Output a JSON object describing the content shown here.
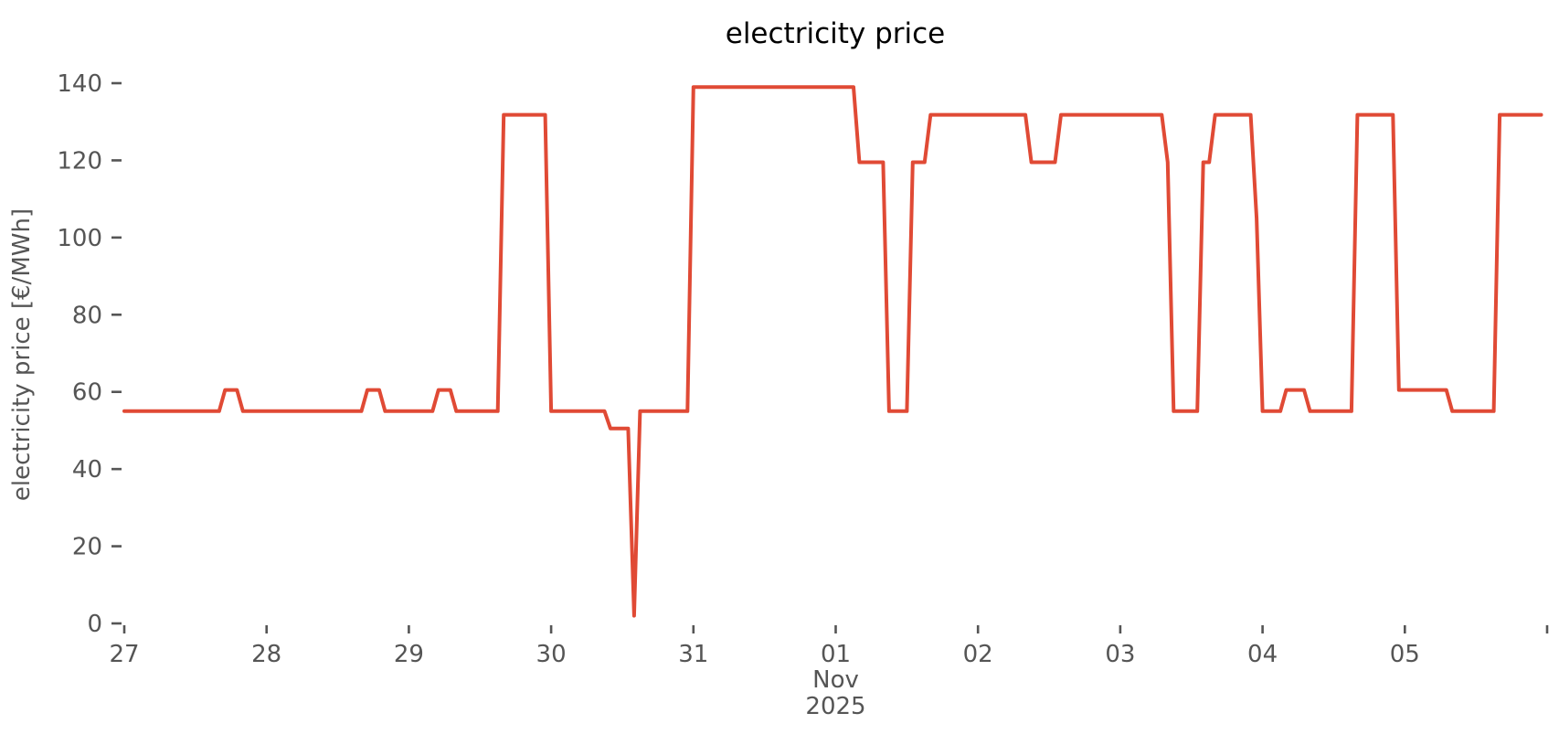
{
  "chart_data": {
    "type": "line",
    "title": "electricity price",
    "ylabel": "electricity price [€/MWh]",
    "xlabel_month": "Nov",
    "xlabel_year": "2025",
    "series_name": "electricity price",
    "line_color": "#e04a35",
    "tick_color": "#555555",
    "title_color": "#000000",
    "grid": "off",
    "legend": "none",
    "x_start": "2025-10-27 00:00",
    "hours_per_point": 1,
    "ylim": [
      0,
      140
    ],
    "y_ticks": [
      0,
      20,
      40,
      60,
      80,
      100,
      120,
      140
    ],
    "x_ticks": [
      {
        "label": "27",
        "day": 0
      },
      {
        "label": "28",
        "day": 1
      },
      {
        "label": "29",
        "day": 2
      },
      {
        "label": "30",
        "day": 3
      },
      {
        "label": "31",
        "day": 4
      },
      {
        "label": "01",
        "day": 5
      },
      {
        "label": "02",
        "day": 6
      },
      {
        "label": "03",
        "day": 7
      },
      {
        "label": "04",
        "day": 8
      },
      {
        "label": "05",
        "day": 9
      }
    ],
    "x_end_tick_day": 10,
    "month_label_day": 5,
    "values": [
      55,
      55,
      55,
      55,
      55,
      55,
      55,
      55,
      55,
      55,
      55,
      55,
      55,
      55,
      55,
      55,
      55,
      60.5,
      60.5,
      60.5,
      55,
      55,
      55,
      55,
      55,
      55,
      55,
      55,
      55,
      55,
      55,
      55,
      55,
      55,
      55,
      55,
      55,
      55,
      55,
      55,
      55,
      60.5,
      60.5,
      60.5,
      55,
      55,
      55,
      55,
      55,
      55,
      55,
      55,
      55,
      60.5,
      60.5,
      60.5,
      55,
      55,
      55,
      55,
      55,
      55,
      55,
      55,
      131.8,
      131.8,
      131.8,
      131.8,
      131.8,
      131.8,
      131.8,
      131.8,
      55,
      55,
      55,
      55,
      55,
      55,
      55,
      55,
      55,
      55,
      50.5,
      50.5,
      50.5,
      50.5,
      2,
      55,
      55,
      55,
      55,
      55,
      55,
      55,
      55,
      55,
      139,
      139,
      139,
      139,
      139,
      139,
      139,
      139,
      139,
      139,
      139,
      139,
      139,
      139,
      139,
      139,
      139,
      139,
      139,
      139,
      139,
      139,
      139,
      139,
      139,
      139,
      139,
      139,
      119.5,
      119.5,
      119.5,
      119.5,
      119.5,
      55,
      55,
      55,
      55,
      119.5,
      119.5,
      119.5,
      131.8,
      131.8,
      131.8,
      131.8,
      131.8,
      131.8,
      131.8,
      131.8,
      131.8,
      131.8,
      131.8,
      131.8,
      131.8,
      131.8,
      131.8,
      131.8,
      131.8,
      119.5,
      119.5,
      119.5,
      119.5,
      119.5,
      131.8,
      131.8,
      131.8,
      131.8,
      131.8,
      131.8,
      131.8,
      131.8,
      131.8,
      131.8,
      131.8,
      131.8,
      131.8,
      131.8,
      131.8,
      131.8,
      131.8,
      131.8,
      119.5,
      55,
      55,
      55,
      55,
      55,
      119.5,
      119.5,
      131.8,
      131.8,
      131.8,
      131.8,
      131.8,
      131.8,
      131.8,
      105,
      55,
      55,
      55,
      55,
      60.5,
      60.5,
      60.5,
      60.5,
      55,
      55,
      55,
      55,
      55,
      55,
      55,
      55,
      131.8,
      131.8,
      131.8,
      131.8,
      131.8,
      131.8,
      131.8,
      60.5,
      60.5,
      60.5,
      60.5,
      60.5,
      60.5,
      60.5,
      60.5,
      60.5,
      55,
      55,
      55,
      55,
      55,
      55,
      55,
      55,
      131.8,
      131.8,
      131.8,
      131.8,
      131.8,
      131.8,
      131.8,
      131.8
    ]
  }
}
